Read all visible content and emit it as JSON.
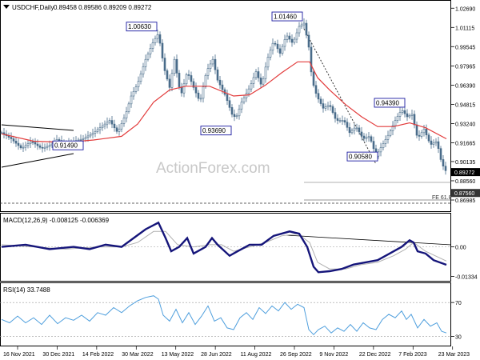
{
  "header": {
    "symbol": "USDCHF,Daily",
    "ohlc": "0.89458 0.89586 0.89209 0.89272"
  },
  "watermark": "ActionForex.com",
  "colors": {
    "candle": "#4a6d8a",
    "ema": "#e23b3b",
    "macd": "#15157a",
    "signal": "#b0b0b0",
    "rsi": "#4f9fdd",
    "label_border": "#1a1aa0",
    "trendline": "#000000",
    "current_price_bg": "#000000",
    "fe_line_bg": "#333333"
  },
  "chart_data": [
    {
      "type": "candlestick",
      "panel": "price",
      "title": "USDCHF,Daily",
      "y_ticks": [
        "1.02690",
        "1.01115",
        "0.99545",
        "0.97965",
        "0.96390",
        "0.94815",
        "0.93240",
        "0.91665",
        "0.90135",
        "0.88560",
        "0.86985"
      ],
      "ylim": [
        0.862,
        1.031
      ],
      "current_price": "0.89272",
      "fe_level": "0.87560",
      "fe_label": "FE 61.8",
      "annotations": [
        "1.00630",
        "1.01460",
        "0.93690",
        "0.91490",
        "0.94390",
        "0.90580"
      ],
      "price_path": [
        [
          0,
          0.925
        ],
        [
          12,
          0.92
        ],
        [
          25,
          0.912
        ],
        [
          37,
          0.918
        ],
        [
          50,
          0.912
        ],
        [
          62,
          0.915
        ],
        [
          70,
          0.92
        ],
        [
          77,
          0.915
        ],
        [
          90,
          0.918
        ],
        [
          102,
          0.92
        ],
        [
          115,
          0.925
        ],
        [
          125,
          0.93
        ],
        [
          135,
          0.935
        ],
        [
          145,
          0.925
        ],
        [
          155,
          0.94
        ],
        [
          162,
          0.955
        ],
        [
          170,
          0.965
        ],
        [
          180,
          0.985
        ],
        [
          190,
          1.0
        ],
        [
          196,
          1.0063
        ],
        [
          203,
          0.978
        ],
        [
          210,
          0.962
        ],
        [
          216,
          0.985
        ],
        [
          224,
          0.955
        ],
        [
          232,
          0.975
        ],
        [
          240,
          0.962
        ],
        [
          248,
          0.95
        ],
        [
          256,
          0.975
        ],
        [
          264,
          0.985
        ],
        [
          270,
          0.968
        ],
        [
          280,
          0.955
        ],
        [
          288,
          0.94
        ],
        [
          293,
          0.9369
        ],
        [
          300,
          0.95
        ],
        [
          310,
          0.962
        ],
        [
          318,
          0.975
        ],
        [
          325,
          0.963
        ],
        [
          332,
          0.985
        ],
        [
          340,
          1.0
        ],
        [
          348,
          0.99
        ],
        [
          356,
          1.005
        ],
        [
          364,
          0.998
        ],
        [
          372,
          1.012
        ],
        [
          378,
          1.0146
        ],
        [
          384,
          0.995
        ],
        [
          388,
          0.968
        ],
        [
          394,
          0.955
        ],
        [
          402,
          0.945
        ],
        [
          410,
          0.948
        ],
        [
          418,
          0.935
        ],
        [
          428,
          0.935
        ],
        [
          435,
          0.925
        ],
        [
          443,
          0.93
        ],
        [
          452,
          0.92
        ],
        [
          460,
          0.922
        ],
        [
          468,
          0.9058
        ],
        [
          476,
          0.915
        ],
        [
          485,
          0.925
        ],
        [
          492,
          0.935
        ],
        [
          500,
          0.9439
        ],
        [
          507,
          0.938
        ],
        [
          513,
          0.94
        ],
        [
          520,
          0.92
        ],
        [
          528,
          0.928
        ],
        [
          536,
          0.915
        ],
        [
          544,
          0.918
        ],
        [
          550,
          0.9
        ],
        [
          556,
          0.8927
        ]
      ],
      "ema_path": [
        [
          0,
          0.924
        ],
        [
          40,
          0.918
        ],
        [
          80,
          0.917
        ],
        [
          115,
          0.919
        ],
        [
          150,
          0.922
        ],
        [
          170,
          0.932
        ],
        [
          190,
          0.95
        ],
        [
          210,
          0.96
        ],
        [
          230,
          0.963
        ],
        [
          260,
          0.963
        ],
        [
          290,
          0.955
        ],
        [
          310,
          0.956
        ],
        [
          330,
          0.964
        ],
        [
          350,
          0.974
        ],
        [
          370,
          0.983
        ],
        [
          385,
          0.983
        ],
        [
          395,
          0.97
        ],
        [
          410,
          0.96
        ],
        [
          430,
          0.948
        ],
        [
          450,
          0.938
        ],
        [
          470,
          0.93
        ],
        [
          490,
          0.93
        ],
        [
          510,
          0.933
        ],
        [
          530,
          0.929
        ],
        [
          556,
          0.92
        ]
      ]
    },
    {
      "type": "line",
      "panel": "macd",
      "title": "MACD(12,26,9) -0.008125 -0.006369",
      "y_ticks": [
        "0.00",
        "-0.01334"
      ],
      "ylim": [
        -0.015,
        0.014
      ],
      "series": [
        {
          "name": "MACD",
          "points": [
            [
              0,
              0.0
            ],
            [
              30,
              0.001
            ],
            [
              60,
              -0.001
            ],
            [
              90,
              0.0
            ],
            [
              110,
              -0.001
            ],
            [
              130,
              0.001
            ],
            [
              150,
              0.0
            ],
            [
              165,
              0.004
            ],
            [
              180,
              0.008
            ],
            [
              196,
              0.011
            ],
            [
              205,
              0.004
            ],
            [
              212,
              -0.002
            ],
            [
              222,
              0.0
            ],
            [
              232,
              0.004
            ],
            [
              240,
              -0.003
            ],
            [
              255,
              0.0
            ],
            [
              263,
              0.004
            ],
            [
              270,
              0.001
            ],
            [
              285,
              -0.004
            ],
            [
              295,
              -0.002
            ],
            [
              310,
              0.001
            ],
            [
              325,
              0.001
            ],
            [
              340,
              0.005
            ],
            [
              360,
              0.007
            ],
            [
              372,
              0.006
            ],
            [
              382,
              0.0
            ],
            [
              390,
              -0.009
            ],
            [
              396,
              -0.0115
            ],
            [
              410,
              -0.011
            ],
            [
              425,
              -0.01
            ],
            [
              440,
              -0.008
            ],
            [
              455,
              -0.007
            ],
            [
              470,
              -0.006
            ],
            [
              485,
              -0.003
            ],
            [
              500,
              0.0
            ],
            [
              510,
              0.003
            ],
            [
              515,
              0.002
            ],
            [
              520,
              -0.002
            ],
            [
              530,
              -0.003
            ],
            [
              540,
              -0.006
            ],
            [
              556,
              -0.0081
            ]
          ]
        },
        {
          "name": "Signal",
          "points": [
            [
              0,
              0.001
            ],
            [
              40,
              0.0
            ],
            [
              80,
              -0.001
            ],
            [
              120,
              0.0
            ],
            [
              150,
              0.0
            ],
            [
              170,
              0.002
            ],
            [
              190,
              0.007
            ],
            [
              205,
              0.007
            ],
            [
              220,
              0.001
            ],
            [
              240,
              0.0
            ],
            [
              260,
              0.001
            ],
            [
              275,
              0.001
            ],
            [
              290,
              -0.002
            ],
            [
              310,
              0.0
            ],
            [
              330,
              0.002
            ],
            [
              350,
              0.005
            ],
            [
              370,
              0.006
            ],
            [
              385,
              0.002
            ],
            [
              395,
              -0.007
            ],
            [
              410,
              -0.01
            ],
            [
              430,
              -0.01
            ],
            [
              450,
              -0.008
            ],
            [
              470,
              -0.007
            ],
            [
              490,
              -0.004
            ],
            [
              505,
              -0.001
            ],
            [
              515,
              0.002
            ],
            [
              530,
              -0.002
            ],
            [
              556,
              -0.0064
            ]
          ]
        }
      ]
    },
    {
      "type": "line",
      "panel": "rsi",
      "title": "RSI(14) 33.7488",
      "y_ticks": [
        "70",
        "30"
      ],
      "ylim": [
        20,
        90
      ],
      "series": [
        {
          "name": "RSI",
          "points": [
            [
              0,
              50
            ],
            [
              10,
              46
            ],
            [
              20,
              54
            ],
            [
              30,
              46
            ],
            [
              40,
              52
            ],
            [
              50,
              44
            ],
            [
              60,
              55
            ],
            [
              70,
              45
            ],
            [
              80,
              52
            ],
            [
              90,
              49
            ],
            [
              100,
              55
            ],
            [
              110,
              48
            ],
            [
              120,
              58
            ],
            [
              130,
              55
            ],
            [
              140,
              64
            ],
            [
              150,
              58
            ],
            [
              160,
              66
            ],
            [
              170,
              72
            ],
            [
              180,
              76
            ],
            [
              190,
              78
            ],
            [
              196,
              74
            ],
            [
              202,
              55
            ],
            [
              210,
              48
            ],
            [
              218,
              62
            ],
            [
              226,
              46
            ],
            [
              234,
              58
            ],
            [
              242,
              44
            ],
            [
              250,
              54
            ],
            [
              258,
              66
            ],
            [
              266,
              48
            ],
            [
              274,
              52
            ],
            [
              282,
              40
            ],
            [
              290,
              38
            ],
            [
              298,
              52
            ],
            [
              306,
              58
            ],
            [
              314,
              50
            ],
            [
              322,
              64
            ],
            [
              330,
              57
            ],
            [
              338,
              66
            ],
            [
              346,
              60
            ],
            [
              354,
              70
            ],
            [
              362,
              62
            ],
            [
              370,
              68
            ],
            [
              378,
              64
            ],
            [
              384,
              38
            ],
            [
              390,
              32
            ],
            [
              396,
              38
            ],
            [
              404,
              42
            ],
            [
              412,
              34
            ],
            [
              420,
              40
            ],
            [
              428,
              36
            ],
            [
              436,
              44
            ],
            [
              444,
              36
            ],
            [
              452,
              46
            ],
            [
              460,
              40
            ],
            [
              468,
              38
            ],
            [
              476,
              50
            ],
            [
              484,
              56
            ],
            [
              492,
              52
            ],
            [
              500,
              60
            ],
            [
              506,
              50
            ],
            [
              512,
              56
            ],
            [
              520,
              40
            ],
            [
              528,
              50
            ],
            [
              536,
              42
            ],
            [
              544,
              46
            ],
            [
              550,
              36
            ],
            [
              556,
              34
            ]
          ]
        }
      ]
    }
  ],
  "x_labels": [
    "16 Nov 2021",
    "30 Dec 2021",
    "14 Feb 2022",
    "30 Mar 2022",
    "13 May 2022",
    "28 Jun 2022",
    "11 Aug 2022",
    "26 Sep 2022",
    "9 Nov 2022",
    "22 Dec 2022",
    "7 Feb 2023",
    "23 Mar 2023"
  ]
}
